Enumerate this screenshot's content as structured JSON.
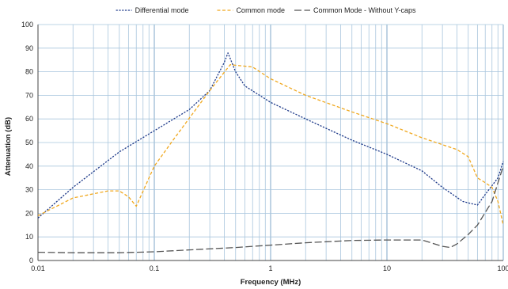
{
  "chart_data": {
    "type": "line",
    "title": "",
    "xlabel": "Frequency (MHz)",
    "ylabel": "Attenuation (dB)",
    "x_scale": "log",
    "xlim": [
      0.01,
      100
    ],
    "ylim": [
      0,
      100
    ],
    "grid": true,
    "legend_position": "top",
    "x_tick_labels": [
      "0.01",
      "0.1",
      "1",
      "10",
      "100"
    ],
    "y_tick_labels": [
      "0",
      "10",
      "20",
      "30",
      "40",
      "50",
      "60",
      "70",
      "80",
      "90",
      "100"
    ],
    "series": [
      {
        "name": "Differential mode",
        "color": "#1f3b8a",
        "dash": "fine",
        "points": [
          [
            0.01,
            18
          ],
          [
            0.02,
            31
          ],
          [
            0.05,
            46
          ],
          [
            0.1,
            55
          ],
          [
            0.2,
            64
          ],
          [
            0.3,
            72
          ],
          [
            0.4,
            84
          ],
          [
            0.43,
            88
          ],
          [
            0.5,
            80
          ],
          [
            0.6,
            74
          ],
          [
            1,
            67
          ],
          [
            2,
            60
          ],
          [
            5,
            51
          ],
          [
            10,
            45
          ],
          [
            20,
            38
          ],
          [
            30,
            31
          ],
          [
            45,
            25
          ],
          [
            60,
            23.5
          ],
          [
            70,
            28
          ],
          [
            90,
            35
          ],
          [
            100,
            42
          ]
        ]
      },
      {
        "name": "Common mode",
        "color": "#f0a81e",
        "dash": "medium",
        "points": [
          [
            0.01,
            19
          ],
          [
            0.02,
            26.5
          ],
          [
            0.04,
            29.5
          ],
          [
            0.05,
            29.5
          ],
          [
            0.06,
            27
          ],
          [
            0.07,
            23
          ],
          [
            0.1,
            40
          ],
          [
            0.15,
            52
          ],
          [
            0.3,
            72
          ],
          [
            0.45,
            83
          ],
          [
            0.7,
            82
          ],
          [
            1,
            77
          ],
          [
            2,
            70
          ],
          [
            5,
            63
          ],
          [
            10,
            58
          ],
          [
            20,
            52
          ],
          [
            40,
            47
          ],
          [
            50,
            44
          ],
          [
            60,
            35
          ],
          [
            70,
            33
          ],
          [
            80,
            31
          ],
          [
            90,
            25
          ],
          [
            100,
            15
          ]
        ]
      },
      {
        "name": "Common Mode - Without Y-caps",
        "color": "#555555",
        "dash": "long",
        "points": [
          [
            0.01,
            3.5
          ],
          [
            0.02,
            3.3
          ],
          [
            0.05,
            3.3
          ],
          [
            0.1,
            3.7
          ],
          [
            0.2,
            4.5
          ],
          [
            0.5,
            5.5
          ],
          [
            1,
            6.5
          ],
          [
            2,
            7.5
          ],
          [
            5,
            8.5
          ],
          [
            10,
            8.7
          ],
          [
            20,
            8.7
          ],
          [
            30,
            6
          ],
          [
            35,
            5.5
          ],
          [
            40,
            7
          ],
          [
            50,
            11
          ],
          [
            60,
            15
          ],
          [
            80,
            25
          ],
          [
            100,
            40
          ]
        ]
      }
    ]
  }
}
